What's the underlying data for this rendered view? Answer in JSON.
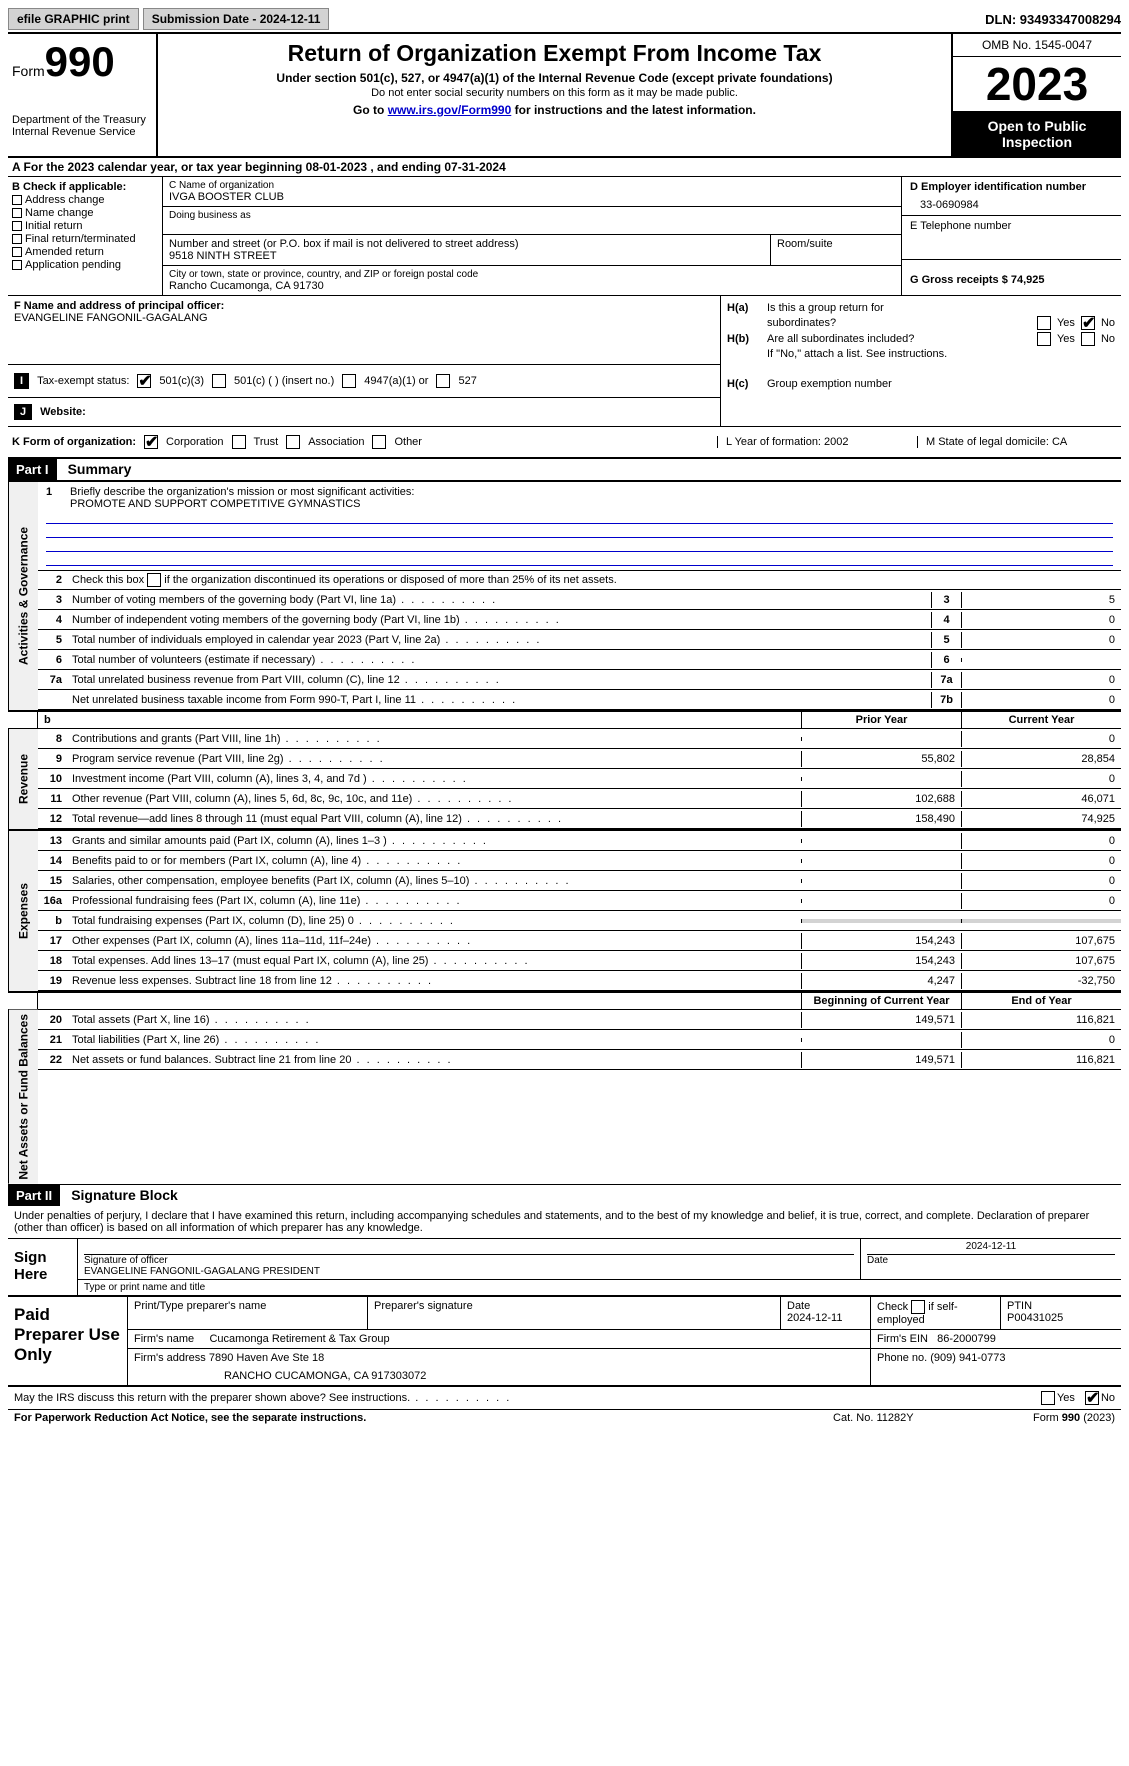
{
  "top": {
    "efile": "efile GRAPHIC print",
    "submission": "Submission Date - 2024-12-11",
    "dln": "DLN: 93493347008294"
  },
  "header": {
    "form_word": "Form",
    "form_num": "990",
    "dept1": "Department of the Treasury",
    "dept2": "Internal Revenue Service",
    "title": "Return of Organization Exempt From Income Tax",
    "sub1": "Under section 501(c), 527, or 4947(a)(1) of the Internal Revenue Code (except private foundations)",
    "sub2": "Do not enter social security numbers on this form as it may be made public.",
    "sub3_pre": "Go to ",
    "sub3_link": "www.irs.gov/Form990",
    "sub3_post": " for instructions and the latest information.",
    "omb": "OMB No. 1545-0047",
    "year": "2023",
    "open1": "Open to Public",
    "open2": "Inspection"
  },
  "rowA": "A For the 2023 calendar year, or tax year beginning 08-01-2023   , and ending 07-31-2024",
  "colB": {
    "title": "B Check if applicable:",
    "opts": [
      "Address change",
      "Name change",
      "Initial return",
      "Final return/terminated",
      "Amended return",
      "Application pending"
    ]
  },
  "colC": {
    "name_lbl": "C Name of organization",
    "name_val": "IVGA BOOSTER CLUB",
    "dba_lbl": "Doing business as",
    "addr_lbl": "Number and street (or P.O. box if mail is not delivered to street address)",
    "addr_val": "9518 NINTH STREET",
    "room_lbl": "Room/suite",
    "city_lbl": "City or town, state or province, country, and ZIP or foreign postal code",
    "city_val": "Rancho Cucamonga, CA  91730"
  },
  "colD": {
    "ein_lbl": "D Employer identification number",
    "ein_val": "33-0690984",
    "tel_lbl": "E Telephone number",
    "gross_lbl": "G Gross receipts $ 74,925"
  },
  "colF": {
    "lbl": "F  Name and address of principal officer:",
    "val": "EVANGELINE FANGONIL-GAGALANG"
  },
  "colH": {
    "ha_lbl": "H(a)",
    "ha_txt1": "Is this a group return for",
    "ha_txt2": "subordinates?",
    "hb_lbl": "H(b)",
    "hb_txt": "Are all subordinates included?",
    "hb_note": "If \"No,\" attach a list. See instructions.",
    "hc_lbl": "H(c)",
    "hc_txt": "Group exemption number",
    "yes": "Yes",
    "no": "No"
  },
  "rowI": {
    "lbl": "I",
    "txt": "Tax-exempt status:",
    "opt1": "501(c)(3)",
    "opt2": "501(c) (  ) (insert no.)",
    "opt3": "4947(a)(1) or",
    "opt4": "527"
  },
  "rowJ": {
    "lbl": "J",
    "txt": "Website:"
  },
  "rowK": {
    "lbl": "K Form of organization:",
    "opts": [
      "Corporation",
      "Trust",
      "Association",
      "Other"
    ],
    "L": "L Year of formation: 2002",
    "M": "M State of legal domicile: CA"
  },
  "part1": {
    "hdr": "Part I",
    "title": "Summary",
    "l1_lbl": "Briefly describe the organization's mission or most significant activities:",
    "l1_val": "PROMOTE AND SUPPORT COMPETITIVE GYMNASTICS",
    "l2": "Check this box      if the organization discontinued its operations or disposed of more than 25% of its net assets.",
    "sides": {
      "gov": "Activities & Governance",
      "rev": "Revenue",
      "exp": "Expenses",
      "net": "Net Assets or Fund Balances"
    },
    "gov_lines": [
      {
        "n": "3",
        "d": "Number of voting members of the governing body (Part VI, line 1a)",
        "bn": "3",
        "v": "5"
      },
      {
        "n": "4",
        "d": "Number of independent voting members of the governing body (Part VI, line 1b)",
        "bn": "4",
        "v": "0"
      },
      {
        "n": "5",
        "d": "Total number of individuals employed in calendar year 2023 (Part V, line 2a)",
        "bn": "5",
        "v": "0"
      },
      {
        "n": "6",
        "d": "Total number of volunteers (estimate if necessary)",
        "bn": "6",
        "v": ""
      },
      {
        "n": "7a",
        "d": "Total unrelated business revenue from Part VIII, column (C), line 12",
        "bn": "7a",
        "v": "0"
      },
      {
        "n": "",
        "d": "Net unrelated business taxable income from Form 990-T, Part I, line 11",
        "bn": "7b",
        "v": "0"
      }
    ],
    "col_hdr": {
      "prior": "Prior Year",
      "curr": "Current Year"
    },
    "rev_lines": [
      {
        "n": "8",
        "d": "Contributions and grants (Part VIII, line 1h)",
        "p": "",
        "c": "0"
      },
      {
        "n": "9",
        "d": "Program service revenue (Part VIII, line 2g)",
        "p": "55,802",
        "c": "28,854"
      },
      {
        "n": "10",
        "d": "Investment income (Part VIII, column (A), lines 3, 4, and 7d )",
        "p": "",
        "c": "0"
      },
      {
        "n": "11",
        "d": "Other revenue (Part VIII, column (A), lines 5, 6d, 8c, 9c, 10c, and 11e)",
        "p": "102,688",
        "c": "46,071"
      },
      {
        "n": "12",
        "d": "Total revenue—add lines 8 through 11 (must equal Part VIII, column (A), line 12)",
        "p": "158,490",
        "c": "74,925"
      }
    ],
    "exp_lines": [
      {
        "n": "13",
        "d": "Grants and similar amounts paid (Part IX, column (A), lines 1–3 )",
        "p": "",
        "c": "0"
      },
      {
        "n": "14",
        "d": "Benefits paid to or for members (Part IX, column (A), line 4)",
        "p": "",
        "c": "0"
      },
      {
        "n": "15",
        "d": "Salaries, other compensation, employee benefits (Part IX, column (A), lines 5–10)",
        "p": "",
        "c": "0"
      },
      {
        "n": "16a",
        "d": "Professional fundraising fees (Part IX, column (A), line 11e)",
        "p": "",
        "c": "0"
      },
      {
        "n": "b",
        "d": "Total fundraising expenses (Part IX, column (D), line 25) 0",
        "p": "GRAY",
        "c": "GRAY"
      },
      {
        "n": "17",
        "d": "Other expenses (Part IX, column (A), lines 11a–11d, 11f–24e)",
        "p": "154,243",
        "c": "107,675"
      },
      {
        "n": "18",
        "d": "Total expenses. Add lines 13–17 (must equal Part IX, column (A), line 25)",
        "p": "154,243",
        "c": "107,675"
      },
      {
        "n": "19",
        "d": "Revenue less expenses. Subtract line 18 from line 12",
        "p": "4,247",
        "c": "-32,750"
      }
    ],
    "net_hdr": {
      "b": "Beginning of Current Year",
      "e": "End of Year"
    },
    "net_lines": [
      {
        "n": "20",
        "d": "Total assets (Part X, line 16)",
        "p": "149,571",
        "c": "116,821"
      },
      {
        "n": "21",
        "d": "Total liabilities (Part X, line 26)",
        "p": "",
        "c": "0"
      },
      {
        "n": "22",
        "d": "Net assets or fund balances. Subtract line 21 from line 20",
        "p": "149,571",
        "c": "116,821"
      }
    ]
  },
  "part2": {
    "hdr": "Part II",
    "title": "Signature Block",
    "decl": "Under penalties of perjury, I declare that I have examined this return, including accompanying schedules and statements, and to the best of my knowledge and belief, it is true, correct, and complete. Declaration of preparer (other than officer) is based on all information of which preparer has any knowledge."
  },
  "sign": {
    "left": "Sign Here",
    "sig_lbl": "Signature of officer",
    "sig_val": "EVANGELINE FANGONIL-GAGALANG  PRESIDENT",
    "type_lbl": "Type or print name and title",
    "date_lbl": "Date",
    "date_val": "2024-12-11"
  },
  "prep": {
    "left": "Paid Preparer Use Only",
    "h1": "Print/Type preparer's name",
    "h2": "Preparer's signature",
    "h3": "Date",
    "h3v": "2024-12-11",
    "h4": "Check       if self-employed",
    "h5": "PTIN",
    "h5v": "P00431025",
    "firm_lbl": "Firm's name",
    "firm_val": "Cucamonga Retirement & Tax Group",
    "ein_lbl": "Firm's EIN",
    "ein_val": "86-2000799",
    "addr_lbl": "Firm's address",
    "addr_val1": "7890 Haven Ave Ste 18",
    "addr_val2": "RANCHO CUCAMONGA, CA  917303072",
    "phone_lbl": "Phone no.",
    "phone_val": "(909) 941-0773"
  },
  "footer": {
    "discuss": "May the IRS discuss this return with the preparer shown above? See instructions.",
    "yes": "Yes",
    "no": "No",
    "pra": "For Paperwork Reduction Act Notice, see the separate instructions.",
    "cat": "Cat. No. 11282Y",
    "form": "Form 990 (2023)"
  },
  "colors": {
    "black": "#000000",
    "gray_btn": "#d3d3d3",
    "link": "#0000cc",
    "hline": "#0000cc"
  }
}
